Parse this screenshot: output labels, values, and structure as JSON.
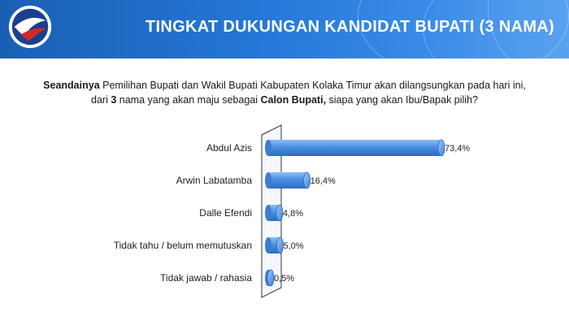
{
  "header": {
    "title": "TINGKAT DUKUNGAN KANDIDAT BUPATI (3 NAMA)"
  },
  "question": {
    "line1_bold": "Seandainya",
    "line1_rest": " Pemilihan Bupati dan Wakil Bupati Kabupaten Kolaka Timur akan dilangsungkan pada hari ini,",
    "line2_pre": "dari ",
    "line2_bold1": "3",
    "line2_mid": " nama yang akan maju sebagai ",
    "line2_bold2": "Calon Bupati,",
    "line2_rest": " siapa yang akan Ibu/Bapak pilih?"
  },
  "colors": {
    "header_start": "#1a5fb4",
    "header_end": "#5aa2f0",
    "bar_fill": "#4a90e2",
    "bar_dark": "#2c6cbf"
  },
  "chart_data": {
    "type": "bar",
    "orientation": "horizontal",
    "categories": [
      "Abdul Azis",
      "Arwin Labatamba",
      "Dalle Efendi",
      "Tidak tahu / belum memutuskan",
      "Tidak jawab / rahasia"
    ],
    "values": [
      73.4,
      16.4,
      4.8,
      5.0,
      0.5
    ],
    "value_labels": [
      "73,4%",
      "16,4%",
      "4,8%",
      "5,0%",
      "0,5%"
    ],
    "unit": "%",
    "xlim": [
      0,
      80
    ],
    "grid": false,
    "legend": "none"
  }
}
